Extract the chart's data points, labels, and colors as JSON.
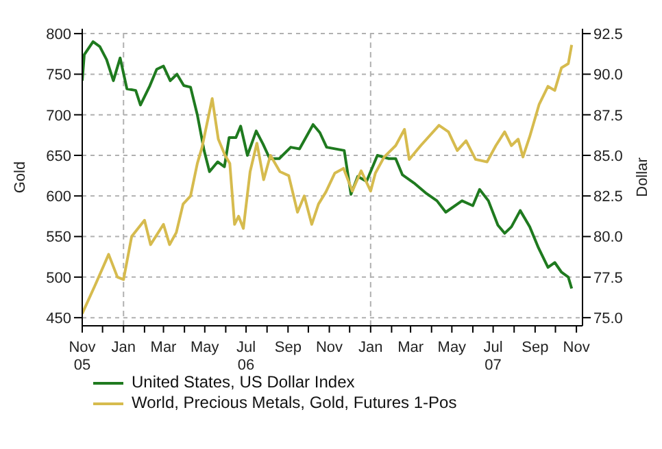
{
  "chart_data": {
    "type": "line",
    "ylabel": "Gold",
    "y2label": "Dollar",
    "grid": "y",
    "legend": "bottom",
    "line_style": "solid",
    "xlim": [
      "2005-11-01",
      "2007-11-10"
    ],
    "xticks": [
      {
        "value": "2005-11-01",
        "label": "Nov\n05"
      },
      {
        "value": "2005-12-01",
        "label": null
      },
      {
        "value": "2006-01-01",
        "label": "Jan"
      },
      {
        "value": "2006-02-01",
        "label": null
      },
      {
        "value": "2006-03-01",
        "label": "Mar"
      },
      {
        "value": "2006-04-01",
        "label": null
      },
      {
        "value": "2006-05-01",
        "label": "May"
      },
      {
        "value": "2006-06-01",
        "label": null
      },
      {
        "value": "2006-07-01",
        "label": "Jul\n06"
      },
      {
        "value": "2006-08-01",
        "label": null
      },
      {
        "value": "2006-09-01",
        "label": "Sep"
      },
      {
        "value": "2006-10-01",
        "label": null
      },
      {
        "value": "2006-11-01",
        "label": "Nov"
      },
      {
        "value": "2006-12-01",
        "label": null
      },
      {
        "value": "2007-01-01",
        "label": "Jan"
      },
      {
        "value": "2007-02-01",
        "label": null
      },
      {
        "value": "2007-03-01",
        "label": "Mar"
      },
      {
        "value": "2007-04-01",
        "label": null
      },
      {
        "value": "2007-05-01",
        "label": "May"
      },
      {
        "value": "2007-06-01",
        "label": null
      },
      {
        "value": "2007-07-01",
        "label": "Jul\n07"
      },
      {
        "value": "2007-08-01",
        "label": null
      },
      {
        "value": "2007-09-01",
        "label": "Sep"
      },
      {
        "value": "2007-10-01",
        "label": null
      },
      {
        "value": "2007-11-01",
        "label": "Nov"
      }
    ],
    "ylim": [
      440,
      806
    ],
    "yticks": [
      450,
      500,
      550,
      600,
      650,
      700,
      750,
      800
    ],
    "y2lim": [
      74.5,
      92.8
    ],
    "y2ticks": [
      {
        "value": 75,
        "label": "75.0"
      },
      77.5,
      {
        "value": 80,
        "label": "80.0"
      },
      82.5,
      {
        "value": 85,
        "label": "85.0"
      },
      87.5,
      {
        "value": 90,
        "label": "90.0"
      },
      92.5
    ],
    "ref_lines": [
      {
        "axis": "x",
        "value": "2006-01-01",
        "color": "#b0b0b0",
        "line_style": "dashed"
      },
      {
        "axis": "x",
        "value": "2007-01-01",
        "color": "#b0b0b0",
        "line_style": "dashed"
      }
    ],
    "series": [
      {
        "name": "United States, US Dollar Index",
        "color": "#1f7a1f",
        "axis": "y2",
        "x": [
          "2005-11-01",
          "2005-11-04",
          "2005-11-17",
          "2005-11-27",
          "2005-12-07",
          "2005-12-17",
          "2005-12-27",
          "2006-01-06",
          "2006-01-19",
          "2006-01-26",
          "2006-02-09",
          "2006-02-19",
          "2006-03-01",
          "2006-03-11",
          "2006-03-21",
          "2006-03-31",
          "2006-04-10",
          "2006-04-20",
          "2006-04-30",
          "2006-05-08",
          "2006-05-20",
          "2006-05-30",
          "2006-06-06",
          "2006-06-16",
          "2006-06-23",
          "2006-07-03",
          "2006-07-16",
          "2006-07-26",
          "2006-08-05",
          "2006-08-19",
          "2006-09-05",
          "2006-09-18",
          "2006-10-08",
          "2006-10-18",
          "2006-10-28",
          "2006-11-23",
          "2006-12-03",
          "2006-12-13",
          "2006-12-26",
          "2007-01-11",
          "2007-01-28",
          "2007-02-07",
          "2007-02-17",
          "2007-03-06",
          "2007-03-23",
          "2007-04-09",
          "2007-04-22",
          "2007-05-16",
          "2007-06-01",
          "2007-06-11",
          "2007-06-24",
          "2007-07-08",
          "2007-07-18",
          "2007-07-28",
          "2007-08-10",
          "2007-08-24",
          "2007-09-06",
          "2007-09-20",
          "2007-09-30",
          "2007-10-10",
          "2007-10-20",
          "2007-10-25"
        ],
        "values": [
          89.6,
          91.2,
          92.0,
          91.7,
          90.9,
          89.6,
          91.0,
          89.1,
          89.0,
          88.1,
          89.3,
          90.3,
          90.5,
          89.6,
          90.0,
          89.3,
          89.2,
          87.5,
          85.3,
          84.0,
          84.6,
          84.3,
          86.1,
          86.1,
          86.8,
          85.0,
          86.5,
          85.7,
          84.8,
          84.8,
          85.5,
          85.4,
          86.9,
          86.4,
          85.5,
          85.3,
          82.6,
          83.7,
          83.4,
          85.0,
          84.8,
          84.8,
          83.8,
          83.3,
          82.7,
          82.2,
          81.5,
          82.2,
          81.9,
          82.9,
          82.2,
          80.7,
          80.2,
          80.6,
          81.6,
          80.6,
          79.3,
          78.1,
          78.4,
          77.8,
          77.5,
          76.8
        ]
      },
      {
        "name": "World, Precious Metals, Gold, Futures 1-Pos",
        "color": "#d6bb4e",
        "x": [
          "2005-11-01",
          "2005-11-20",
          "2005-12-10",
          "2005-12-23",
          "2006-01-01",
          "2006-01-13",
          "2006-02-01",
          "2006-02-10",
          "2006-03-01",
          "2006-03-10",
          "2006-03-20",
          "2006-03-30",
          "2006-04-10",
          "2006-04-20",
          "2006-04-27",
          "2006-05-12",
          "2006-05-21",
          "2006-05-31",
          "2006-06-07",
          "2006-06-14",
          "2006-06-20",
          "2006-06-27",
          "2006-07-07",
          "2006-07-17",
          "2006-07-27",
          "2006-08-06",
          "2006-08-20",
          "2006-09-02",
          "2006-09-15",
          "2006-09-25",
          "2006-10-06",
          "2006-10-16",
          "2006-10-27",
          "2006-11-09",
          "2006-11-22",
          "2006-12-05",
          "2006-12-18",
          "2007-01-01",
          "2007-01-08",
          "2007-01-21",
          "2007-02-07",
          "2007-02-20",
          "2007-02-27",
          "2007-03-16",
          "2007-04-12",
          "2007-04-26",
          "2007-05-09",
          "2007-05-22",
          "2007-06-05",
          "2007-06-22",
          "2007-07-05",
          "2007-07-18",
          "2007-07-28",
          "2007-08-07",
          "2007-08-14",
          "2007-08-24",
          "2007-09-07",
          "2007-09-20",
          "2007-09-30",
          "2007-10-10",
          "2007-10-20",
          "2007-10-25"
        ],
        "values": [
          455,
          490,
          528,
          500,
          497,
          550,
          570,
          540,
          565,
          540,
          555,
          590,
          600,
          640,
          660,
          720,
          670,
          650,
          640,
          565,
          575,
          560,
          630,
          665,
          620,
          650,
          630,
          625,
          580,
          600,
          565,
          590,
          605,
          628,
          634,
          606,
          631,
          606,
          628,
          648,
          662,
          682,
          645,
          662,
          687,
          679,
          656,
          668,
          645,
          642,
          662,
          679,
          662,
          670,
          648,
          673,
          713,
          735,
          730,
          758,
          763,
          786
        ]
      }
    ]
  }
}
